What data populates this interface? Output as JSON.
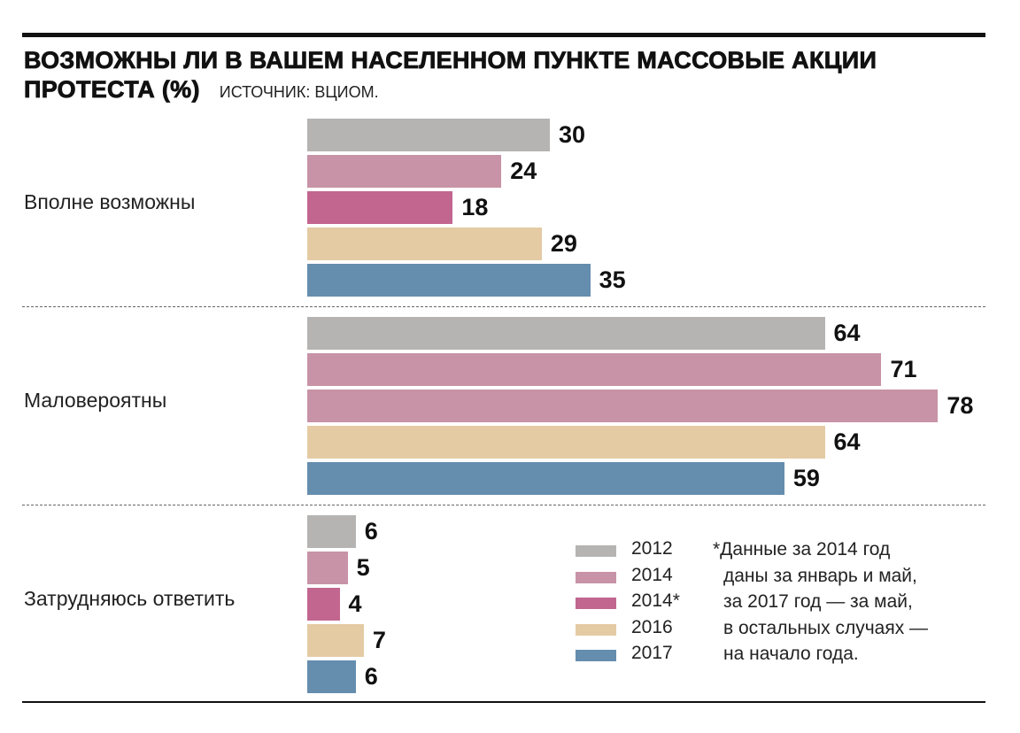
{
  "chart_data": {
    "type": "bar",
    "orientation": "horizontal",
    "title": "ВОЗМОЖНЫ ЛИ В ВАШЕМ НАСЕЛЕННОМ ПУНКТЕ МАССОВЫЕ АКЦИИ ПРОТЕСТА (%)",
    "title_line1": "ВОЗМОЖНЫ ЛИ В ВАШЕМ НАСЕЛЕННОМ ПУНКТЕ МАССОВЫЕ АКЦИИ",
    "title_line2": "ПРОТЕСТА (%)",
    "source": "ИСТОЧНИК: ВЦИОМ.",
    "categories": [
      "Вполне возможны",
      "Маловероятны",
      "Затрудняюсь ответить"
    ],
    "series": [
      {
        "name": "2012",
        "color": "#b5b4b2",
        "values": [
          30,
          64,
          6
        ]
      },
      {
        "name": "2014",
        "color": "#c893a6",
        "values": [
          24,
          71,
          5
        ]
      },
      {
        "name": "2014*",
        "color": "#c26690",
        "values": [
          18,
          78,
          4
        ]
      },
      {
        "name": "2016",
        "color": "#e4cba4",
        "values": [
          29,
          64,
          7
        ]
      },
      {
        "name": "2017",
        "color": "#658dae",
        "values": [
          35,
          59,
          6
        ]
      }
    ],
    "color_overrides": [
      {
        "series": 2,
        "category": 1,
        "color": "#c893a6"
      }
    ],
    "xlim": [
      0,
      80
    ],
    "legend_position": "bottom-right",
    "footnote": [
      "*Данные за 2014 год",
      "даны за январь и май,",
      "за 2017 год — за май,",
      "в остальных случаях —",
      "на начало года."
    ]
  }
}
